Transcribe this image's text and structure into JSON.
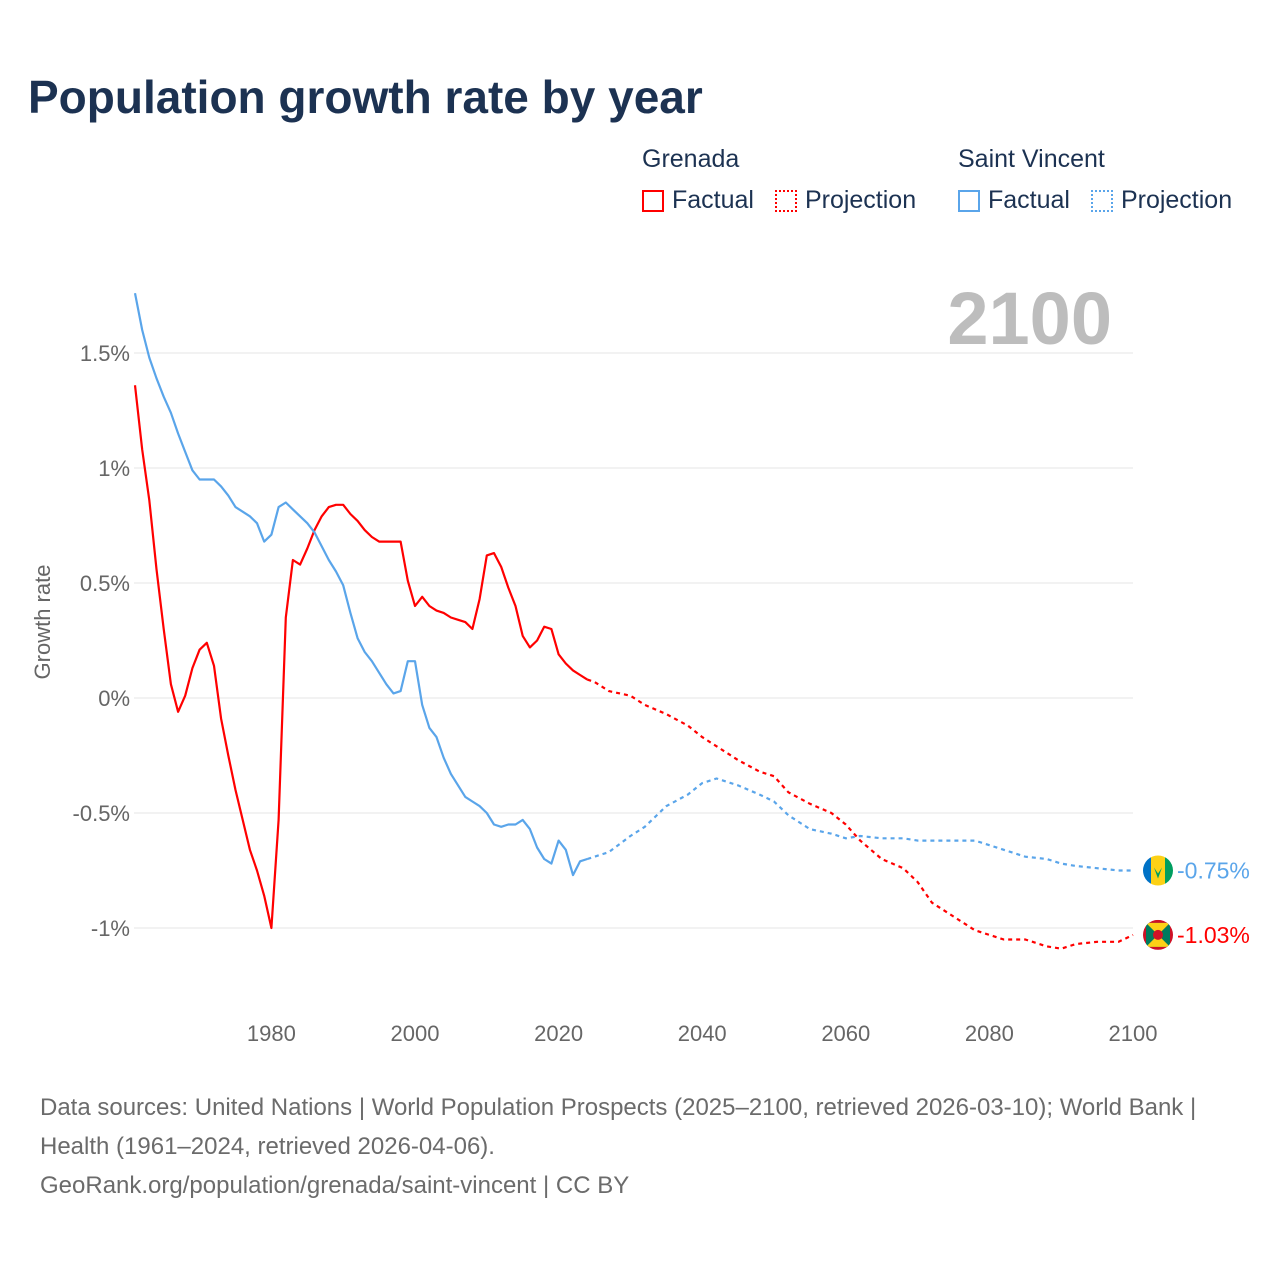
{
  "title": "Population growth rate by year",
  "current_year": "2100",
  "legend": [
    {
      "group": "Grenada",
      "color": "#ff0000",
      "factual": "Factual",
      "projection": "Projection"
    },
    {
      "group": "Saint Vincent",
      "color": "#5aa5ea",
      "factual": "Factual",
      "projection": "Projection"
    }
  ],
  "footer": {
    "sources": "Data sources: United Nations | World Population Prospects (2025–2100, retrieved 2026-03-10); World Bank | Health (1961–2024, retrieved 2026-04-06).",
    "link": "GeoRank.org/population/grenada/saint-vincent | CC BY"
  },
  "chart_data": {
    "type": "line",
    "title": "Population growth rate by year",
    "xlabel": "",
    "ylabel": "Growth rate",
    "xlim": [
      1961,
      2100
    ],
    "ylim": [
      -1.3,
      1.8
    ],
    "x_ticks": [
      1980,
      2000,
      2020,
      2040,
      2060,
      2080,
      2100
    ],
    "x_tick_labels": [
      "1980",
      "2000",
      "2020",
      "2040",
      "2060",
      "2080",
      "2100"
    ],
    "y_ticks": [
      -1,
      -0.5,
      0,
      0.5,
      1,
      1.5
    ],
    "y_tick_labels": [
      "-1%",
      "-0.5%",
      "0%",
      "0.5%",
      "1%",
      "1.5%"
    ],
    "grid": true,
    "series": [
      {
        "name": "Grenada",
        "color": "#ff0000",
        "end_label": "-1.03%",
        "factual": {
          "x": [
            1961,
            1962,
            1963,
            1964,
            1965,
            1966,
            1967,
            1968,
            1969,
            1970,
            1971,
            1972,
            1973,
            1974,
            1975,
            1976,
            1977,
            1978,
            1979,
            1980,
            1981,
            1982,
            1983,
            1984,
            1985,
            1986,
            1987,
            1988,
            1989,
            1990,
            1991,
            1992,
            1993,
            1994,
            1995,
            1996,
            1997,
            1998,
            1999,
            2000,
            2001,
            2002,
            2003,
            2004,
            2005,
            2006,
            2007,
            2008,
            2009,
            2010,
            2011,
            2012,
            2013,
            2014,
            2015,
            2016,
            2017,
            2018,
            2019,
            2020,
            2021,
            2022,
            2023,
            2024
          ],
          "y": [
            1.36,
            1.08,
            0.86,
            0.56,
            0.3,
            0.06,
            -0.06,
            0.01,
            0.13,
            0.21,
            0.24,
            0.14,
            -0.09,
            -0.25,
            -0.4,
            -0.53,
            -0.66,
            -0.75,
            -0.86,
            -1.0,
            -0.53,
            0.35,
            0.6,
            0.58,
            0.65,
            0.73,
            0.79,
            0.83,
            0.84,
            0.84,
            0.8,
            0.77,
            0.73,
            0.7,
            0.68,
            0.68,
            0.68,
            0.68,
            0.51,
            0.4,
            0.44,
            0.4,
            0.38,
            0.37,
            0.35,
            0.34,
            0.33,
            0.3,
            0.43,
            0.62,
            0.63,
            0.57,
            0.48,
            0.4,
            0.27,
            0.22,
            0.25,
            0.31,
            0.3,
            0.19,
            0.15,
            0.12,
            0.1,
            0.08
          ]
        },
        "projection": {
          "x": [
            2024,
            2025,
            2027,
            2030,
            2032,
            2035,
            2038,
            2040,
            2042,
            2045,
            2048,
            2050,
            2052,
            2055,
            2058,
            2060,
            2062,
            2065,
            2068,
            2070,
            2072,
            2075,
            2078,
            2080,
            2082,
            2085,
            2088,
            2090,
            2092,
            2095,
            2098,
            2100
          ],
          "y": [
            0.08,
            0.07,
            0.03,
            0.01,
            -0.03,
            -0.07,
            -0.12,
            -0.17,
            -0.21,
            -0.27,
            -0.32,
            -0.34,
            -0.41,
            -0.46,
            -0.5,
            -0.55,
            -0.62,
            -0.7,
            -0.74,
            -0.8,
            -0.89,
            -0.95,
            -1.01,
            -1.03,
            -1.05,
            -1.05,
            -1.08,
            -1.09,
            -1.07,
            -1.06,
            -1.06,
            -1.03
          ]
        }
      },
      {
        "name": "Saint Vincent",
        "color": "#5aa5ea",
        "end_label": "-0.75%",
        "factual": {
          "x": [
            1961,
            1962,
            1963,
            1964,
            1965,
            1966,
            1967,
            1968,
            1969,
            1970,
            1971,
            1972,
            1973,
            1974,
            1975,
            1976,
            1977,
            1978,
            1979,
            1980,
            1981,
            1982,
            1983,
            1984,
            1985,
            1986,
            1987,
            1988,
            1989,
            1990,
            1991,
            1992,
            1993,
            1994,
            1995,
            1996,
            1997,
            1998,
            1999,
            2000,
            2001,
            2002,
            2003,
            2004,
            2005,
            2006,
            2007,
            2008,
            2009,
            2010,
            2011,
            2012,
            2013,
            2014,
            2015,
            2016,
            2017,
            2018,
            2019,
            2020,
            2021,
            2022,
            2023,
            2024
          ],
          "y": [
            1.76,
            1.6,
            1.48,
            1.39,
            1.31,
            1.24,
            1.15,
            1.07,
            0.99,
            0.95,
            0.95,
            0.95,
            0.92,
            0.88,
            0.83,
            0.81,
            0.79,
            0.76,
            0.68,
            0.71,
            0.83,
            0.85,
            0.82,
            0.79,
            0.76,
            0.72,
            0.66,
            0.6,
            0.55,
            0.49,
            0.37,
            0.26,
            0.2,
            0.16,
            0.11,
            0.06,
            0.02,
            0.03,
            0.16,
            0.16,
            -0.03,
            -0.13,
            -0.17,
            -0.26,
            -0.33,
            -0.38,
            -0.43,
            -0.45,
            -0.47,
            -0.5,
            -0.55,
            -0.56,
            -0.55,
            -0.55,
            -0.53,
            -0.57,
            -0.65,
            -0.7,
            -0.72,
            -0.62,
            -0.66,
            -0.77,
            -0.71,
            -0.7
          ]
        },
        "projection": {
          "x": [
            2024,
            2025,
            2027,
            2030,
            2032,
            2035,
            2038,
            2040,
            2042,
            2045,
            2048,
            2050,
            2052,
            2055,
            2058,
            2060,
            2062,
            2065,
            2068,
            2070,
            2072,
            2075,
            2078,
            2080,
            2082,
            2085,
            2088,
            2090,
            2092,
            2095,
            2098,
            2100
          ],
          "y": [
            -0.7,
            -0.69,
            -0.67,
            -0.6,
            -0.56,
            -0.47,
            -0.42,
            -0.37,
            -0.35,
            -0.38,
            -0.42,
            -0.45,
            -0.51,
            -0.57,
            -0.59,
            -0.61,
            -0.6,
            -0.61,
            -0.61,
            -0.62,
            -0.62,
            -0.62,
            -0.62,
            -0.64,
            -0.66,
            -0.69,
            -0.7,
            -0.72,
            -0.73,
            -0.74,
            -0.75,
            -0.75
          ]
        }
      }
    ]
  }
}
